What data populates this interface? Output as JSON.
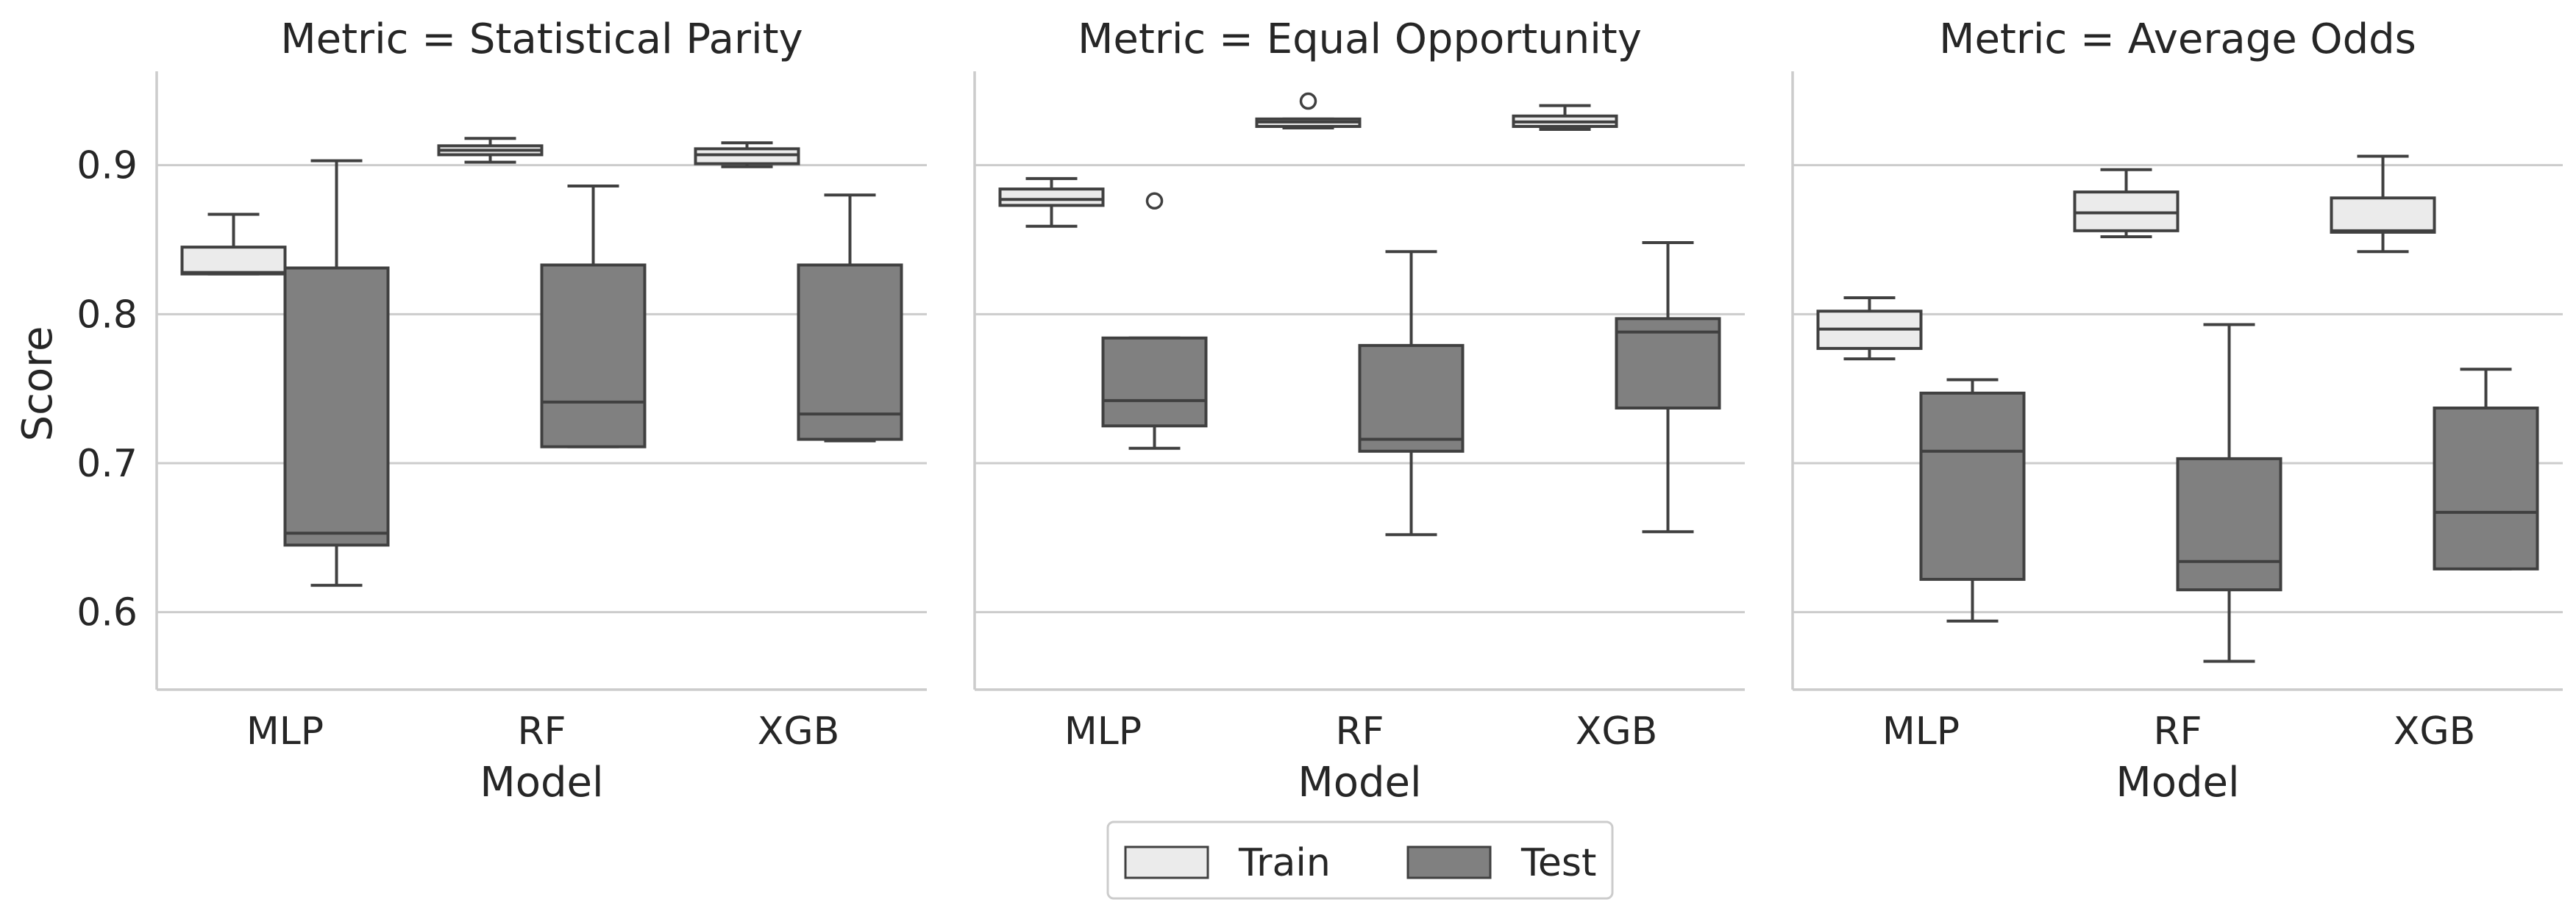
{
  "chart_data": {
    "type": "box",
    "facet_variable": "Metric",
    "xlabel": "Model",
    "ylabel": "Score",
    "ylim": [
      0.548,
      0.963
    ],
    "yticks": [
      0.6,
      0.7,
      0.8,
      0.9
    ],
    "grid": "horizontal",
    "categories": [
      "MLP",
      "RF",
      "XGB"
    ],
    "hue": [
      {
        "name": "Train",
        "color": "#ebebeb"
      },
      {
        "name": "Test",
        "color": "#808080"
      }
    ],
    "legend": {
      "placement": "bottom-center",
      "columns": 2
    },
    "panels": [
      {
        "title": "Metric = Statistical Parity",
        "boxes": {
          "Train": [
            {
              "category": "MLP",
              "whisker_low": 0.827,
              "q1": 0.827,
              "median": 0.828,
              "q3": 0.845,
              "whisker_high": 0.867,
              "outliers": []
            },
            {
              "category": "RF",
              "whisker_low": 0.902,
              "q1": 0.907,
              "median": 0.91,
              "q3": 0.913,
              "whisker_high": 0.918,
              "outliers": []
            },
            {
              "category": "XGB",
              "whisker_low": 0.899,
              "q1": 0.901,
              "median": 0.907,
              "q3": 0.911,
              "whisker_high": 0.915,
              "outliers": []
            }
          ],
          "Test": [
            {
              "category": "MLP",
              "whisker_low": 0.618,
              "q1": 0.645,
              "median": 0.653,
              "q3": 0.831,
              "whisker_high": 0.903,
              "outliers": []
            },
            {
              "category": "RF",
              "whisker_low": 0.711,
              "q1": 0.711,
              "median": 0.741,
              "q3": 0.833,
              "whisker_high": 0.886,
              "outliers": []
            },
            {
              "category": "XGB",
              "whisker_low": 0.715,
              "q1": 0.716,
              "median": 0.733,
              "q3": 0.833,
              "whisker_high": 0.88,
              "outliers": []
            }
          ]
        }
      },
      {
        "title": "Metric = Equal Opportunity",
        "boxes": {
          "Train": [
            {
              "category": "MLP",
              "whisker_low": 0.859,
              "q1": 0.873,
              "median": 0.877,
              "q3": 0.884,
              "whisker_high": 0.891,
              "outliers": []
            },
            {
              "category": "RF",
              "whisker_low": 0.925,
              "q1": 0.926,
              "median": 0.929,
              "q3": 0.931,
              "whisker_high": 0.931,
              "outliers": [
                0.943
              ]
            },
            {
              "category": "XGB",
              "whisker_low": 0.924,
              "q1": 0.926,
              "median": 0.929,
              "q3": 0.933,
              "whisker_high": 0.94,
              "outliers": []
            }
          ],
          "Test": [
            {
              "category": "MLP",
              "whisker_low": 0.71,
              "q1": 0.725,
              "median": 0.742,
              "q3": 0.784,
              "whisker_high": 0.784,
              "outliers": [
                0.876
              ]
            },
            {
              "category": "RF",
              "whisker_low": 0.652,
              "q1": 0.708,
              "median": 0.716,
              "q3": 0.779,
              "whisker_high": 0.842,
              "outliers": []
            },
            {
              "category": "XGB",
              "whisker_low": 0.654,
              "q1": 0.737,
              "median": 0.788,
              "q3": 0.797,
              "whisker_high": 0.848,
              "outliers": []
            }
          ]
        }
      },
      {
        "title": "Metric = Average Odds",
        "boxes": {
          "Train": [
            {
              "category": "MLP",
              "whisker_low": 0.77,
              "q1": 0.777,
              "median": 0.79,
              "q3": 0.802,
              "whisker_high": 0.811,
              "outliers": []
            },
            {
              "category": "RF",
              "whisker_low": 0.852,
              "q1": 0.856,
              "median": 0.868,
              "q3": 0.882,
              "whisker_high": 0.897,
              "outliers": []
            },
            {
              "category": "XGB",
              "whisker_low": 0.842,
              "q1": 0.855,
              "median": 0.856,
              "q3": 0.878,
              "whisker_high": 0.906,
              "outliers": []
            }
          ],
          "Test": [
            {
              "category": "MLP",
              "whisker_low": 0.594,
              "q1": 0.622,
              "median": 0.708,
              "q3": 0.747,
              "whisker_high": 0.756,
              "outliers": []
            },
            {
              "category": "RF",
              "whisker_low": 0.567,
              "q1": 0.615,
              "median": 0.634,
              "q3": 0.703,
              "whisker_high": 0.793,
              "outliers": []
            },
            {
              "category": "XGB",
              "whisker_low": 0.629,
              "q1": 0.629,
              "median": 0.667,
              "q3": 0.737,
              "whisker_high": 0.763,
              "outliers": []
            }
          ]
        }
      }
    ]
  }
}
